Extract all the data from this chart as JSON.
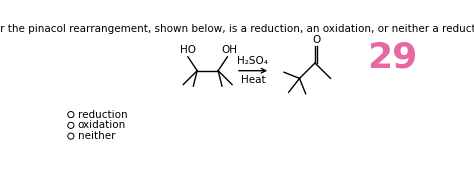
{
  "title": "Determine whether the pinacol rearrangement, shown below, is a reduction, an oxidation, or neither a reduction nor an oxidation.",
  "question_number": "29",
  "options": [
    "reduction",
    "oxidation",
    "neither"
  ],
  "bg_color": "#ffffff",
  "text_color": "#000000",
  "title_fontsize": 7.5,
  "options_fontsize": 7.5,
  "number_fontsize": 26,
  "number_color": "#e868a2",
  "reagent_text": "H₂SO₄",
  "condition_text": "Heat",
  "reagent_fontsize": 7.5,
  "mol_lw": 1.0
}
